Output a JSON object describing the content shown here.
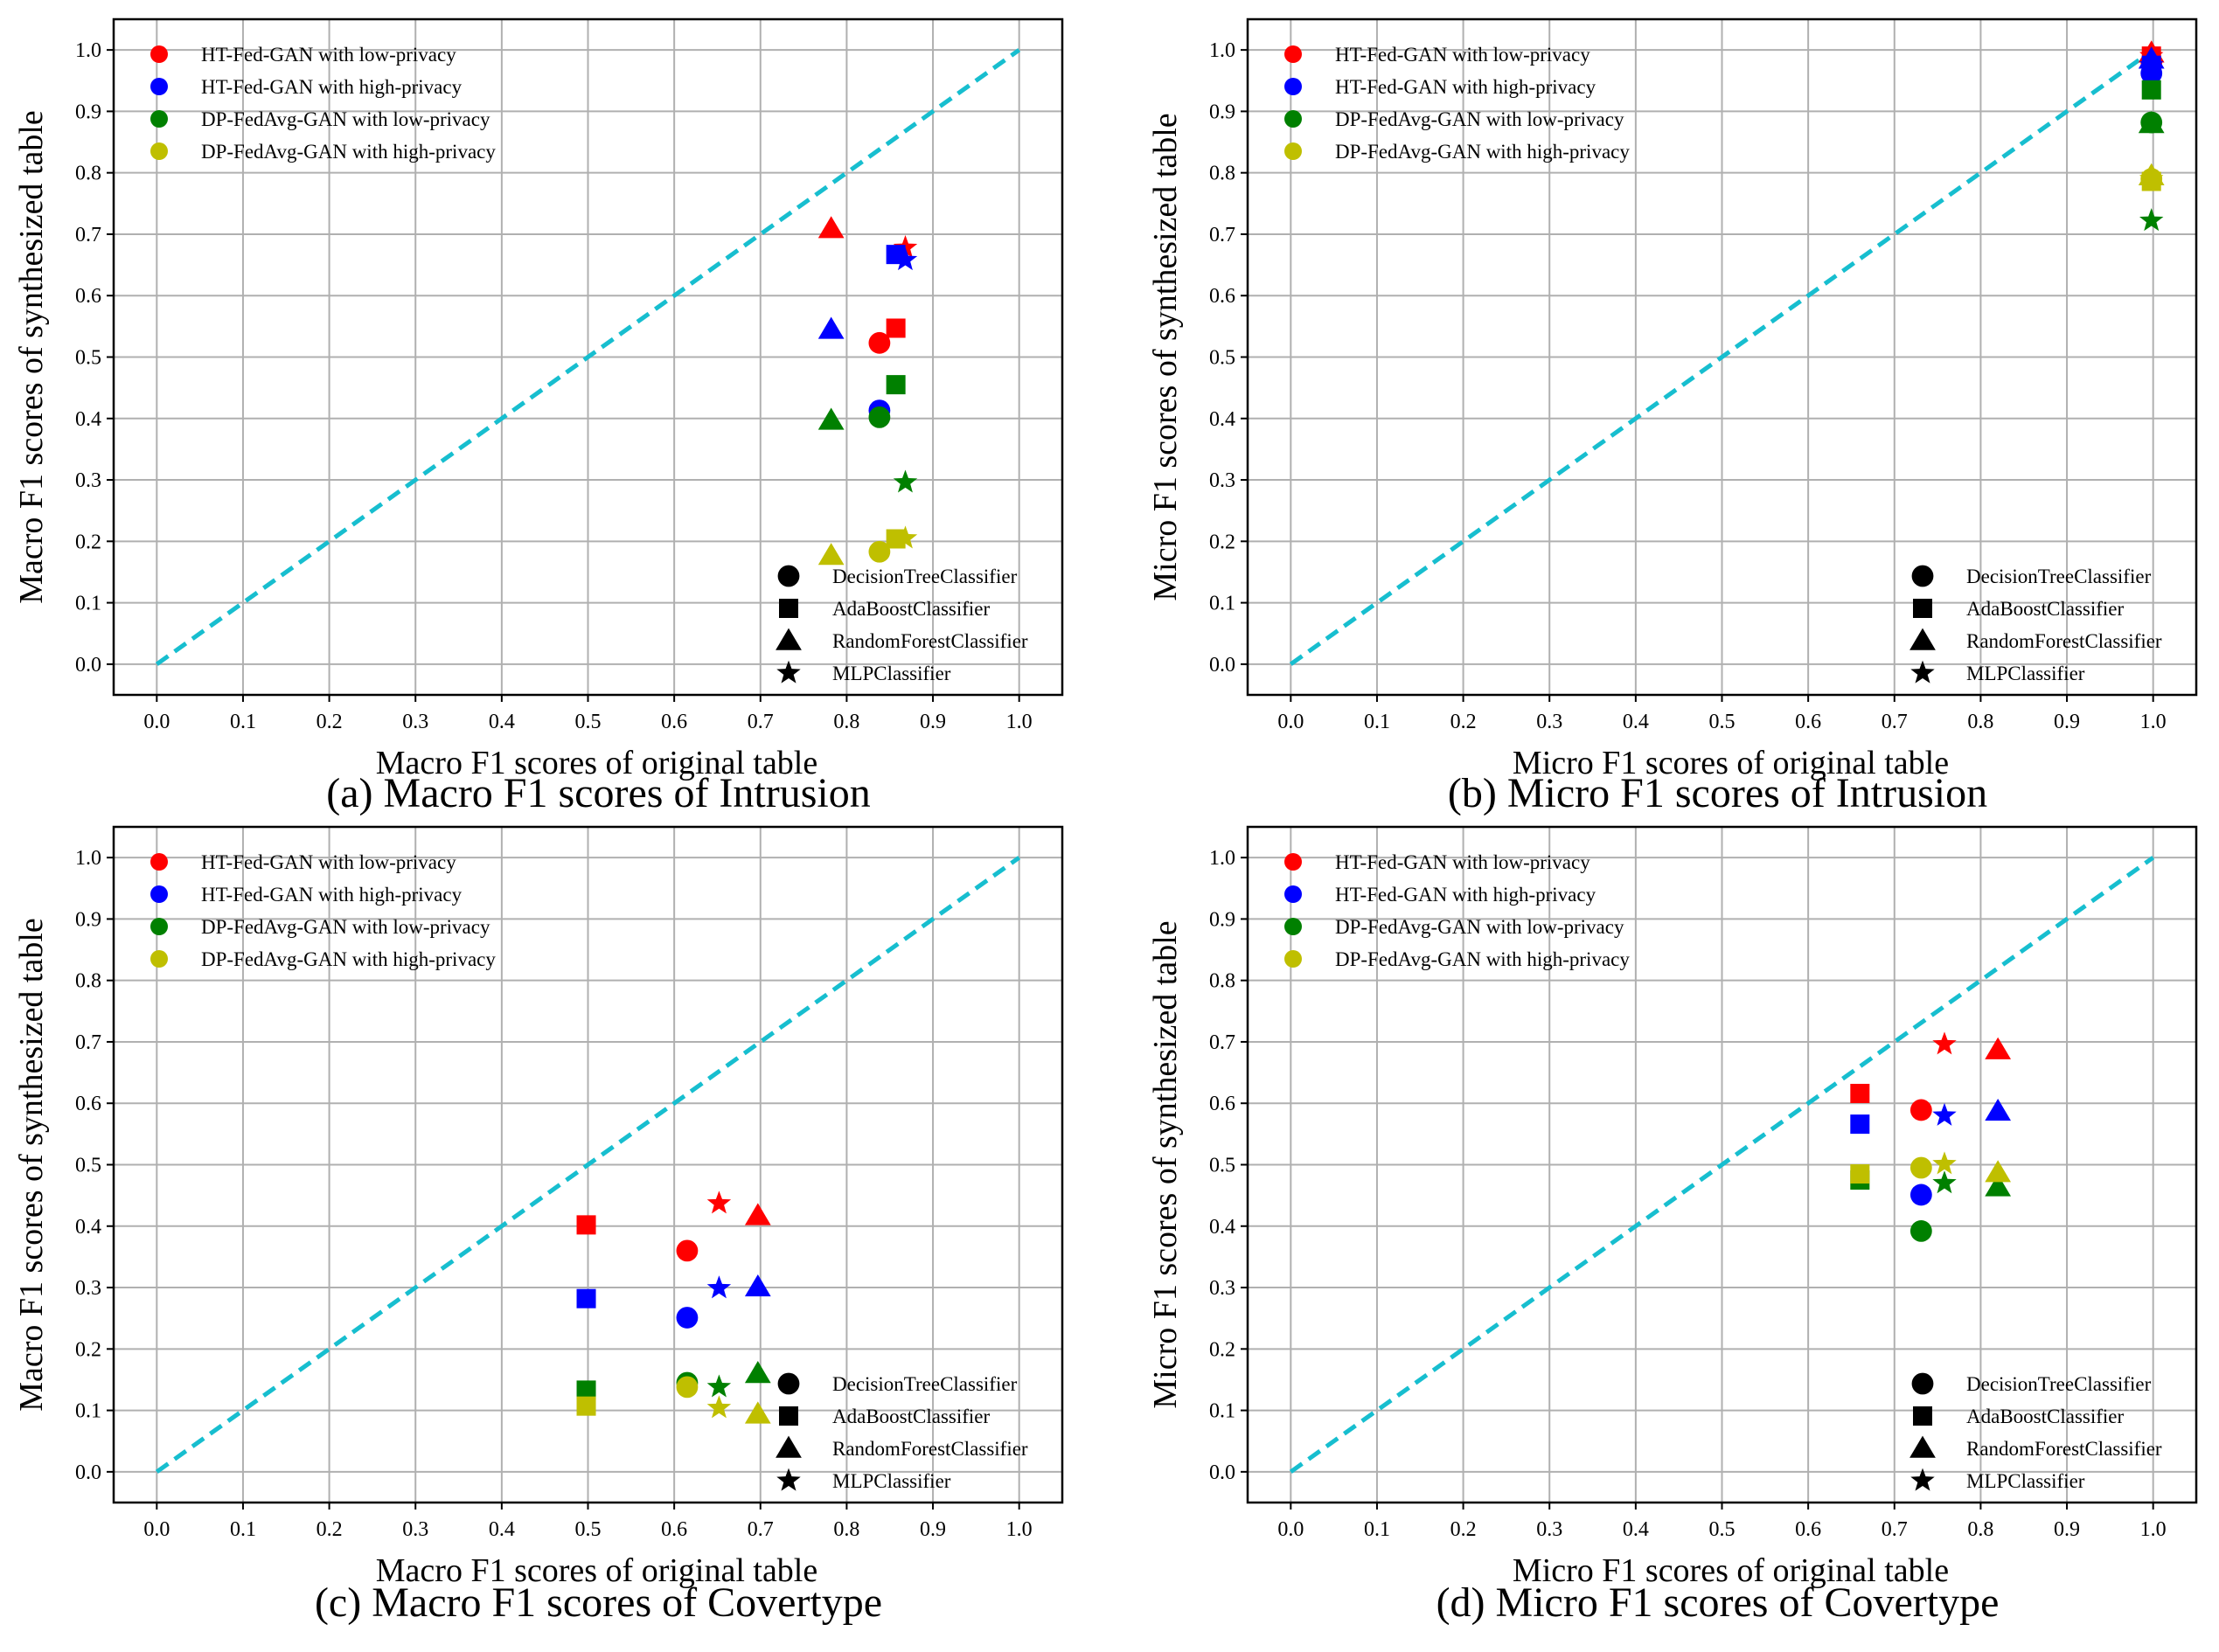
{
  "colors": {
    "low_privacy_ht": "#ff0000",
    "high_privacy_ht": "#0000ff",
    "low_privacy_dp": "#008000",
    "high_privacy_dp": "#bfbf00",
    "diagonal": "#17becf",
    "grid": "#b0b0b0"
  },
  "method_legend": [
    {
      "label": "HT-Fed-GAN with low-privacy",
      "color": "#ff0000"
    },
    {
      "label": "HT-Fed-GAN with high-privacy",
      "color": "#0000ff"
    },
    {
      "label": "DP-FedAvg-GAN with low-privacy",
      "color": "#008000"
    },
    {
      "label": "DP-FedAvg-GAN with high-privacy",
      "color": "#bfbf00"
    }
  ],
  "classifier_legend": [
    {
      "label": "DecisionTreeClassifier",
      "marker": "circle"
    },
    {
      "label": "AdaBoostClassifier",
      "marker": "square"
    },
    {
      "label": "RandomForestClassifier",
      "marker": "triangle"
    },
    {
      "label": "MLPClassifier",
      "marker": "star"
    }
  ],
  "chart_data": [
    {
      "type": "scatter",
      "caption": "(a) Macro F1 scores of Intrusion",
      "xlabel": "Macro F1 scores of original table",
      "ylabel": "Macro F1 scores of synthesized table",
      "xlim": [
        -0.05,
        1.05
      ],
      "ylim": [
        -0.05,
        1.05
      ],
      "ticks": [
        "0.0",
        "0.1",
        "0.2",
        "0.3",
        "0.4",
        "0.5",
        "0.6",
        "0.7",
        "0.8",
        "0.9",
        "1.0"
      ],
      "series": [
        {
          "name": "HT-Fed-GAN with low-privacy",
          "color": "#ff0000",
          "points": [
            {
              "classifier": "DecisionTreeClassifier",
              "x": 0.838,
              "y": 0.523
            },
            {
              "classifier": "AdaBoostClassifier",
              "x": 0.857,
              "y": 0.547
            },
            {
              "classifier": "RandomForestClassifier",
              "x": 0.782,
              "y": 0.709
            },
            {
              "classifier": "MLPClassifier",
              "x": 0.868,
              "y": 0.678
            }
          ]
        },
        {
          "name": "HT-Fed-GAN with high-privacy",
          "color": "#0000ff",
          "points": [
            {
              "classifier": "DecisionTreeClassifier",
              "x": 0.838,
              "y": 0.413
            },
            {
              "classifier": "AdaBoostClassifier",
              "x": 0.857,
              "y": 0.667
            },
            {
              "classifier": "RandomForestClassifier",
              "x": 0.782,
              "y": 0.545
            },
            {
              "classifier": "MLPClassifier",
              "x": 0.868,
              "y": 0.658
            }
          ]
        },
        {
          "name": "DP-FedAvg-GAN with low-privacy",
          "color": "#008000",
          "points": [
            {
              "classifier": "DecisionTreeClassifier",
              "x": 0.838,
              "y": 0.402
            },
            {
              "classifier": "AdaBoostClassifier",
              "x": 0.857,
              "y": 0.455
            },
            {
              "classifier": "RandomForestClassifier",
              "x": 0.782,
              "y": 0.397
            },
            {
              "classifier": "MLPClassifier",
              "x": 0.868,
              "y": 0.296
            }
          ]
        },
        {
          "name": "DP-FedAvg-GAN with high-privacy",
          "color": "#bfbf00",
          "points": [
            {
              "classifier": "DecisionTreeClassifier",
              "x": 0.838,
              "y": 0.183
            },
            {
              "classifier": "AdaBoostClassifier",
              "x": 0.857,
              "y": 0.204
            },
            {
              "classifier": "RandomForestClassifier",
              "x": 0.782,
              "y": 0.177
            },
            {
              "classifier": "MLPClassifier",
              "x": 0.868,
              "y": 0.205
            }
          ]
        }
      ]
    },
    {
      "type": "scatter",
      "caption": "(b) Micro F1 scores of Intrusion",
      "xlabel": "Micro F1 scores of original table",
      "ylabel": "Micro F1 scores of synthesized table",
      "xlim": [
        -0.05,
        1.05
      ],
      "ylim": [
        -0.05,
        1.05
      ],
      "ticks": [
        "0.0",
        "0.1",
        "0.2",
        "0.3",
        "0.4",
        "0.5",
        "0.6",
        "0.7",
        "0.8",
        "0.9",
        "1.0"
      ],
      "series": [
        {
          "name": "HT-Fed-GAN with low-privacy",
          "color": "#ff0000",
          "points": [
            {
              "classifier": "DecisionTreeClassifier",
              "x": 0.998,
              "y": 0.98
            },
            {
              "classifier": "AdaBoostClassifier",
              "x": 0.998,
              "y": 0.99
            },
            {
              "classifier": "RandomForestClassifier",
              "x": 0.998,
              "y": 0.995
            },
            {
              "classifier": "MLPClassifier",
              "x": 0.998,
              "y": 0.99
            }
          ]
        },
        {
          "name": "HT-Fed-GAN with high-privacy",
          "color": "#0000ff",
          "points": [
            {
              "classifier": "DecisionTreeClassifier",
              "x": 0.998,
              "y": 0.962
            },
            {
              "classifier": "AdaBoostClassifier",
              "x": 0.998,
              "y": 0.975
            },
            {
              "classifier": "RandomForestClassifier",
              "x": 0.998,
              "y": 0.985
            },
            {
              "classifier": "MLPClassifier",
              "x": 0.998,
              "y": 0.975
            }
          ]
        },
        {
          "name": "DP-FedAvg-GAN with low-privacy",
          "color": "#008000",
          "points": [
            {
              "classifier": "DecisionTreeClassifier",
              "x": 0.998,
              "y": 0.882
            },
            {
              "classifier": "AdaBoostClassifier",
              "x": 0.998,
              "y": 0.935
            },
            {
              "classifier": "RandomForestClassifier",
              "x": 0.998,
              "y": 0.88
            },
            {
              "classifier": "MLPClassifier",
              "x": 0.998,
              "y": 0.722
            }
          ]
        },
        {
          "name": "DP-FedAvg-GAN with high-privacy",
          "color": "#bfbf00",
          "points": [
            {
              "classifier": "DecisionTreeClassifier",
              "x": 0.998,
              "y": 0.79
            },
            {
              "classifier": "AdaBoostClassifier",
              "x": 0.998,
              "y": 0.786
            },
            {
              "classifier": "RandomForestClassifier",
              "x": 0.998,
              "y": 0.795
            },
            {
              "classifier": "MLPClassifier",
              "x": 0.998,
              "y": 0.79
            }
          ]
        }
      ]
    },
    {
      "type": "scatter",
      "caption": "(c) Macro F1 scores of Covertype",
      "xlabel": "Macro F1 scores of original table",
      "ylabel": "Macro F1 scores of synthesized table",
      "xlim": [
        -0.05,
        1.05
      ],
      "ylim": [
        -0.05,
        1.05
      ],
      "ticks": [
        "0.0",
        "0.1",
        "0.2",
        "0.3",
        "0.4",
        "0.5",
        "0.6",
        "0.7",
        "0.8",
        "0.9",
        "1.0"
      ],
      "series": [
        {
          "name": "HT-Fed-GAN with low-privacy",
          "color": "#ff0000",
          "points": [
            {
              "classifier": "DecisionTreeClassifier",
              "x": 0.615,
              "y": 0.36
            },
            {
              "classifier": "AdaBoostClassifier",
              "x": 0.498,
              "y": 0.402
            },
            {
              "classifier": "RandomForestClassifier",
              "x": 0.697,
              "y": 0.417
            },
            {
              "classifier": "MLPClassifier",
              "x": 0.652,
              "y": 0.437
            }
          ]
        },
        {
          "name": "HT-Fed-GAN with high-privacy",
          "color": "#0000ff",
          "points": [
            {
              "classifier": "DecisionTreeClassifier",
              "x": 0.615,
              "y": 0.251
            },
            {
              "classifier": "AdaBoostClassifier",
              "x": 0.498,
              "y": 0.282
            },
            {
              "classifier": "RandomForestClassifier",
              "x": 0.697,
              "y": 0.301
            },
            {
              "classifier": "MLPClassifier",
              "x": 0.652,
              "y": 0.299
            }
          ]
        },
        {
          "name": "DP-FedAvg-GAN with low-privacy",
          "color": "#008000",
          "points": [
            {
              "classifier": "DecisionTreeClassifier",
              "x": 0.615,
              "y": 0.145
            },
            {
              "classifier": "AdaBoostClassifier",
              "x": 0.498,
              "y": 0.133
            },
            {
              "classifier": "RandomForestClassifier",
              "x": 0.697,
              "y": 0.16
            },
            {
              "classifier": "MLPClassifier",
              "x": 0.652,
              "y": 0.138
            }
          ]
        },
        {
          "name": "DP-FedAvg-GAN with high-privacy",
          "color": "#bfbf00",
          "points": [
            {
              "classifier": "DecisionTreeClassifier",
              "x": 0.615,
              "y": 0.138
            },
            {
              "classifier": "AdaBoostClassifier",
              "x": 0.498,
              "y": 0.107
            },
            {
              "classifier": "RandomForestClassifier",
              "x": 0.697,
              "y": 0.094
            },
            {
              "classifier": "MLPClassifier",
              "x": 0.652,
              "y": 0.104
            }
          ]
        }
      ]
    },
    {
      "type": "scatter",
      "caption": "(d) Micro F1 scores of Covertype",
      "xlabel": "Micro F1 scores of original table",
      "ylabel": "Micro F1 scores of synthesized table",
      "xlim": [
        -0.05,
        1.05
      ],
      "ylim": [
        -0.05,
        1.05
      ],
      "ticks": [
        "0.0",
        "0.1",
        "0.2",
        "0.3",
        "0.4",
        "0.5",
        "0.6",
        "0.7",
        "0.8",
        "0.9",
        "1.0"
      ],
      "series": [
        {
          "name": "HT-Fed-GAN with low-privacy",
          "color": "#ff0000",
          "points": [
            {
              "classifier": "DecisionTreeClassifier",
              "x": 0.731,
              "y": 0.589
            },
            {
              "classifier": "AdaBoostClassifier",
              "x": 0.66,
              "y": 0.616
            },
            {
              "classifier": "RandomForestClassifier",
              "x": 0.82,
              "y": 0.687
            },
            {
              "classifier": "MLPClassifier",
              "x": 0.758,
              "y": 0.696
            }
          ]
        },
        {
          "name": "HT-Fed-GAN with high-privacy",
          "color": "#0000ff",
          "points": [
            {
              "classifier": "DecisionTreeClassifier",
              "x": 0.731,
              "y": 0.451
            },
            {
              "classifier": "AdaBoostClassifier",
              "x": 0.66,
              "y": 0.566
            },
            {
              "classifier": "RandomForestClassifier",
              "x": 0.82,
              "y": 0.587
            },
            {
              "classifier": "MLPClassifier",
              "x": 0.758,
              "y": 0.58
            }
          ]
        },
        {
          "name": "DP-FedAvg-GAN with low-privacy",
          "color": "#008000",
          "points": [
            {
              "classifier": "DecisionTreeClassifier",
              "x": 0.731,
              "y": 0.392
            },
            {
              "classifier": "AdaBoostClassifier",
              "x": 0.66,
              "y": 0.475
            },
            {
              "classifier": "RandomForestClassifier",
              "x": 0.82,
              "y": 0.464
            },
            {
              "classifier": "MLPClassifier",
              "x": 0.758,
              "y": 0.47
            }
          ]
        },
        {
          "name": "DP-FedAvg-GAN with high-privacy",
          "color": "#bfbf00",
          "points": [
            {
              "classifier": "DecisionTreeClassifier",
              "x": 0.731,
              "y": 0.495
            },
            {
              "classifier": "AdaBoostClassifier",
              "x": 0.66,
              "y": 0.485
            },
            {
              "classifier": "RandomForestClassifier",
              "x": 0.82,
              "y": 0.487
            },
            {
              "classifier": "MLPClassifier",
              "x": 0.758,
              "y": 0.501
            }
          ]
        }
      ]
    }
  ]
}
